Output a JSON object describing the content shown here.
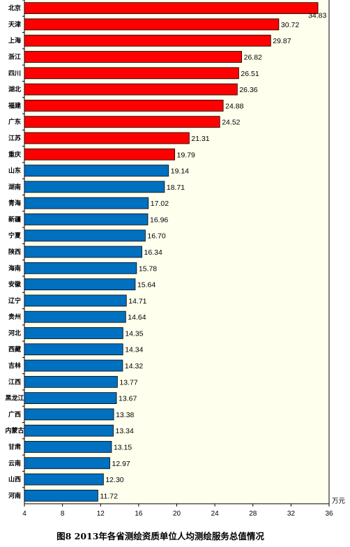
{
  "chart_data": {
    "type": "bar",
    "orientation": "horizontal",
    "title": "图8  2013年各省测绘资质单位人均测绘服务总值情况",
    "unit": "万元",
    "xlim": [
      4,
      36
    ],
    "xticks": [
      4,
      8,
      12,
      16,
      20,
      24,
      28,
      32,
      36
    ],
    "grid": false,
    "colors": {
      "top10": "#ff0000",
      "rest": "#0070c0",
      "plot_bg": "#ffffee"
    },
    "categories": [
      "北京",
      "天津",
      "上海",
      "浙江",
      "四川",
      "湖北",
      "福建",
      "广东",
      "江苏",
      "重庆",
      "山东",
      "湖南",
      "青海",
      "新疆",
      "宁夏",
      "陕西",
      "海南",
      "安徽",
      "辽宁",
      "贵州",
      "河北",
      "西藏",
      "吉林",
      "江西",
      "黑龙江",
      "广西",
      "内蒙古",
      "甘肃",
      "云南",
      "山西",
      "河南"
    ],
    "values": [
      34.83,
      30.72,
      29.87,
      26.82,
      26.51,
      26.36,
      24.88,
      24.52,
      21.31,
      19.79,
      19.14,
      18.71,
      17.02,
      16.96,
      16.7,
      16.34,
      15.78,
      15.64,
      14.71,
      14.64,
      14.35,
      14.34,
      14.32,
      13.77,
      13.67,
      13.38,
      13.34,
      13.15,
      12.97,
      12.3,
      11.72
    ],
    "value_labels": [
      "34.83",
      "30.72",
      "29.87",
      "26.82",
      "26.51",
      "26.36",
      "24.88",
      "24.52",
      "21.31",
      "19.79",
      "19.14",
      "18.71",
      "17.02",
      "16.96",
      "16.70",
      "16.34",
      "15.78",
      "15.64",
      "14.71",
      "14.64",
      "14.35",
      "14.34",
      "14.32",
      "13.77",
      "13.67",
      "13.38",
      "13.34",
      "13.15",
      "12.97",
      "12.30",
      "11.72"
    ]
  }
}
